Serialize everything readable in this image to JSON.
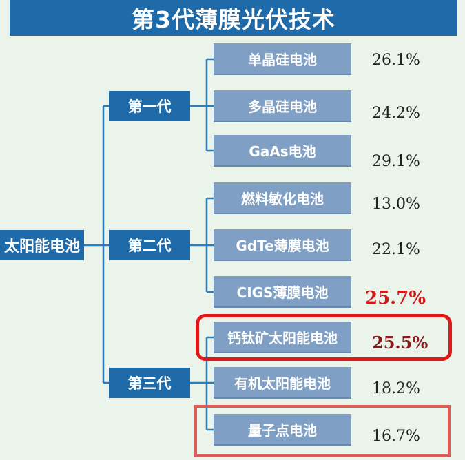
{
  "title": "第3代薄膜光伏技术",
  "root": "太阳能电池",
  "generations": [
    {
      "label": "第一代",
      "cells": [
        {
          "name": "单晶硅电池",
          "efficiency": "26.1%"
        },
        {
          "name": "多晶硅电池",
          "efficiency": "24.2%"
        },
        {
          "name": "GaAs电池",
          "efficiency": "29.1%"
        }
      ]
    },
    {
      "label": "第二代",
      "cells": [
        {
          "name": "燃料敏化电池",
          "efficiency": "13.0%"
        },
        {
          "name": "GdTe薄膜电池",
          "efficiency": "22.1%"
        },
        {
          "name": "CIGS薄膜电池",
          "efficiency": "25.7%"
        }
      ]
    },
    {
      "label": "第三代",
      "cells": [
        {
          "name": "钙钛矿太阳能电池",
          "efficiency": "25.5%"
        },
        {
          "name": "有机太阳能电池",
          "efficiency": "18.2%"
        },
        {
          "name": "量子点电池",
          "efficiency": "16.7%"
        }
      ]
    }
  ],
  "colors": {
    "primary_box": "#1f6aa8",
    "leaf_box": "#7fa0c4",
    "connector": "#2c7cc0",
    "highlight": "#e01818",
    "background": "#eaf4ea"
  }
}
